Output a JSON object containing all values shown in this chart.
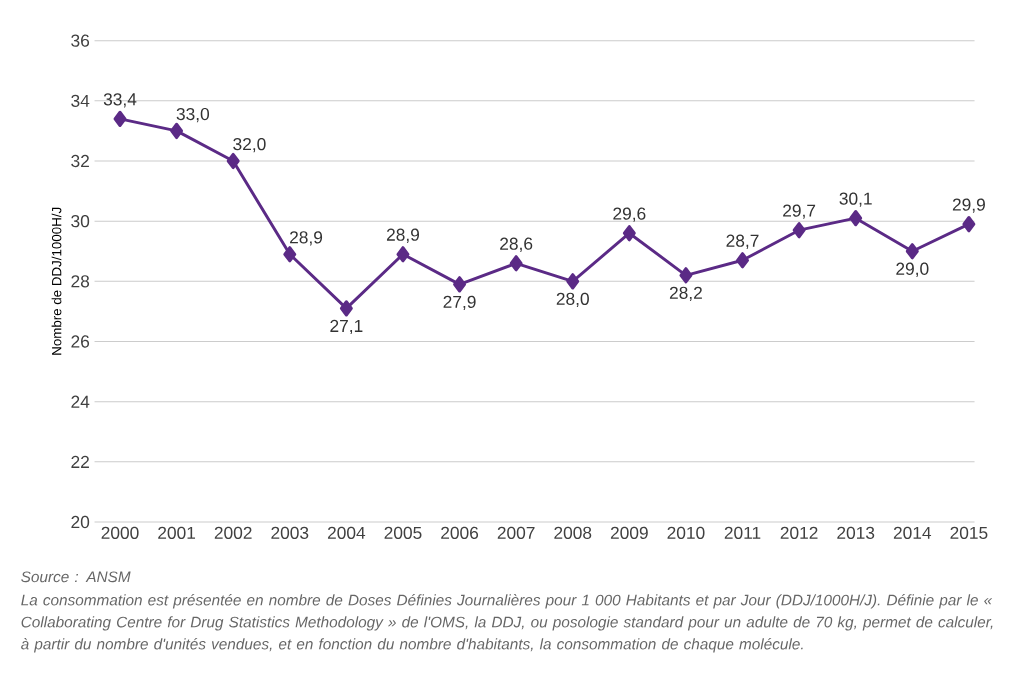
{
  "chart_data": {
    "type": "line",
    "categories": [
      "2000",
      "2001",
      "2002",
      "2003",
      "2004",
      "2005",
      "2006",
      "2007",
      "2008",
      "2009",
      "2010",
      "2011",
      "2012",
      "2013",
      "2014",
      "2015"
    ],
    "series": [
      {
        "color": "#5b2a86",
        "values": [
          33.4,
          33.0,
          32.0,
          28.9,
          27.1,
          28.9,
          27.9,
          28.6,
          28.0,
          29.6,
          28.2,
          28.7,
          29.7,
          30.1,
          29.0,
          29.9
        ],
        "value_labels": [
          "33,4",
          "33,0",
          "32,0",
          "28,9",
          "27,1",
          "28,9",
          "27,9",
          "28,6",
          "28,0",
          "29,6",
          "28,2",
          "28,7",
          "29,7",
          "30,1",
          "29,0",
          "29,9"
        ]
      }
    ],
    "ylabel": "Nombre de DDJ/1000H/J",
    "ylim": [
      20,
      36
    ],
    "yticks": [
      20,
      22,
      24,
      26,
      28,
      30,
      32,
      34,
      36
    ],
    "grid": "y",
    "marker": "diamond",
    "line_style": "solid",
    "annotations": [
      "Source : ANSM",
      "La consommation est présentée en nombre de Doses Définies Journalières pour 1 000 Habitants et par Jour (DDJ/1000H/J). Définie par le « Collaborating Centre for Drug Statistics Methodology » de l'OMS, la DDJ, ou posologie standard pour un adulte de 70 kg, permet de calculer, à partir du nombre d'unités vendues, et en fonction du nombre d'habitants, la consommation de chaque molécule."
    ]
  }
}
